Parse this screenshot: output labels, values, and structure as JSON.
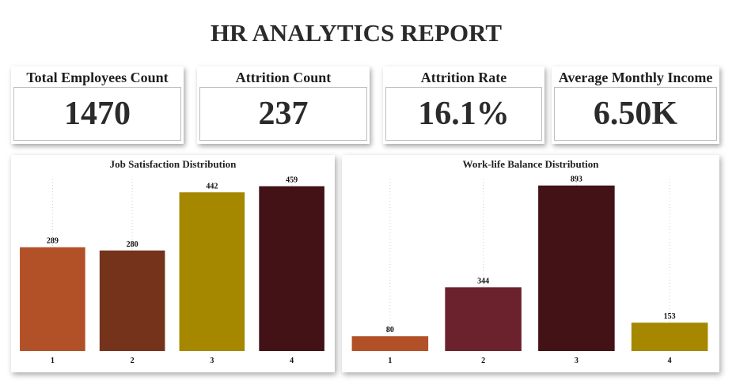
{
  "report_title": "HR ANALYTICS REPORT",
  "kpis": [
    {
      "label": "Total Employees Count",
      "value": "1470"
    },
    {
      "label": "Attrition Count",
      "value": "237"
    },
    {
      "label": "Attrition Rate",
      "value": "16.1%"
    },
    {
      "label": "Average Monthly Income",
      "value": "6.50K"
    }
  ],
  "chart_data": [
    {
      "type": "bar",
      "title": "Job Satisfaction Distribution",
      "categories": [
        "1",
        "2",
        "3",
        "4"
      ],
      "values": [
        289,
        280,
        442,
        459
      ],
      "colors": [
        "#b25128",
        "#74331a",
        "#a68700",
        "#421216"
      ],
      "ylim": [
        0,
        480
      ],
      "grid": "vertical dotted",
      "data_labels": true
    },
    {
      "type": "bar",
      "title": "Work-life Balance Distribution",
      "categories": [
        "1",
        "2",
        "3",
        "4"
      ],
      "values": [
        80,
        344,
        893,
        153
      ],
      "colors": [
        "#b25128",
        "#6b222c",
        "#421216",
        "#a68700"
      ],
      "ylim": [
        0,
        930
      ],
      "grid": "vertical dotted",
      "data_labels": true
    }
  ]
}
